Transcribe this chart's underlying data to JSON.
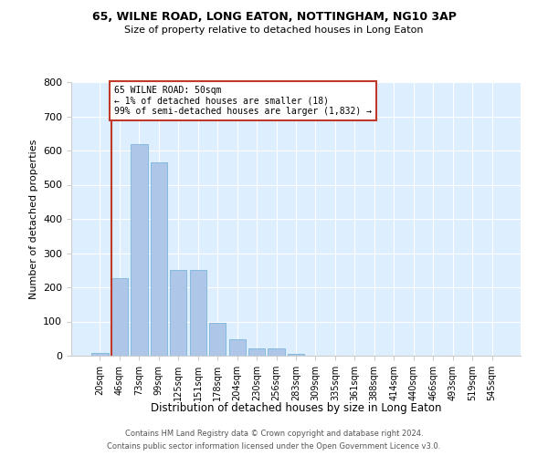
{
  "title1": "65, WILNE ROAD, LONG EATON, NOTTINGHAM, NG10 3AP",
  "title2": "Size of property relative to detached houses in Long Eaton",
  "xlabel": "Distribution of detached houses by size in Long Eaton",
  "ylabel": "Number of detached properties",
  "footer1": "Contains HM Land Registry data © Crown copyright and database right 2024.",
  "footer2": "Contains public sector information licensed under the Open Government Licence v3.0.",
  "annotation_line1": "65 WILNE ROAD: 50sqm",
  "annotation_line2": "← 1% of detached houses are smaller (18)",
  "annotation_line3": "99% of semi-detached houses are larger (1,832) →",
  "bar_labels": [
    "20sqm",
    "46sqm",
    "73sqm",
    "99sqm",
    "125sqm",
    "151sqm",
    "178sqm",
    "204sqm",
    "230sqm",
    "256sqm",
    "283sqm",
    "309sqm",
    "335sqm",
    "361sqm",
    "388sqm",
    "414sqm",
    "440sqm",
    "466sqm",
    "493sqm",
    "519sqm",
    "545sqm"
  ],
  "bar_values": [
    8,
    228,
    618,
    565,
    250,
    250,
    95,
    48,
    22,
    22,
    5,
    0,
    0,
    0,
    0,
    0,
    0,
    0,
    0,
    0,
    0
  ],
  "bar_color": "#aec7e8",
  "bar_edge_color": "#6baed6",
  "vline_color": "#c0392b",
  "annotation_box_color": "#c0392b",
  "background_color": "#ddeeff",
  "grid_color": "#ffffff",
  "ylim": [
    0,
    800
  ],
  "yticks": [
    0,
    100,
    200,
    300,
    400,
    500,
    600,
    700,
    800
  ]
}
